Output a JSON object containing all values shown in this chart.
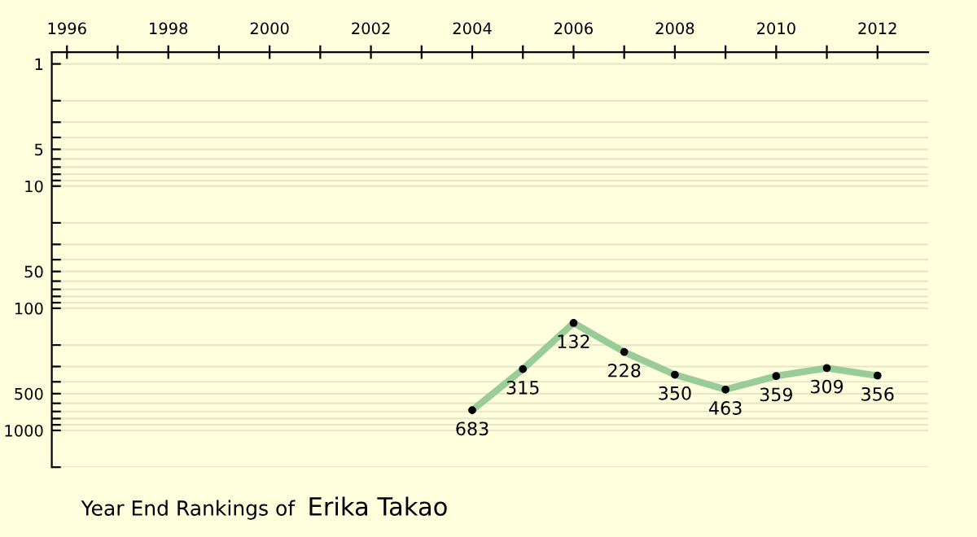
{
  "chart_data": {
    "type": "line",
    "x": [
      2004,
      2005,
      2006,
      2007,
      2008,
      2009,
      2010,
      2011,
      2012
    ],
    "series": [
      {
        "color": "#99cc99",
        "values": [
          683,
          315,
          132,
          228,
          350,
          463,
          359,
          309,
          356
        ]
      }
    ],
    "xlim": [
      1995.7,
      2013
    ],
    "xticks": [
      1996,
      {
        "value": 1997,
        "label": null
      },
      1998,
      {
        "value": 1999,
        "label": null
      },
      2000,
      {
        "value": 2001,
        "label": null
      },
      2002,
      {
        "value": 2003,
        "label": null
      },
      2004,
      {
        "value": 2005,
        "label": null
      },
      2006,
      {
        "value": 2007,
        "label": null
      },
      2008,
      {
        "value": 2009,
        "label": null
      },
      2010,
      {
        "value": 2011,
        "label": null
      },
      2012
    ],
    "ylim": [
      2000,
      0.8
    ],
    "yticks": [
      1,
      {
        "value": 2,
        "label": null
      },
      {
        "value": 3,
        "label": null
      },
      {
        "value": 4,
        "label": null
      },
      5,
      {
        "value": 6,
        "label": null
      },
      {
        "value": 7,
        "label": null
      },
      {
        "value": 8,
        "label": null
      },
      {
        "value": 9,
        "label": null
      },
      10,
      {
        "value": 20,
        "label": null
      },
      {
        "value": 30,
        "label": null
      },
      {
        "value": 40,
        "label": null
      },
      50,
      {
        "value": 60,
        "label": null
      },
      {
        "value": 70,
        "label": null
      },
      {
        "value": 80,
        "label": null
      },
      {
        "value": 90,
        "label": null
      },
      100,
      {
        "value": 200,
        "label": null
      },
      {
        "value": 300,
        "label": null
      },
      {
        "value": 400,
        "label": null
      },
      500,
      {
        "value": 600,
        "label": null
      },
      {
        "value": 700,
        "label": null
      },
      {
        "value": 800,
        "label": null
      },
      {
        "value": 900,
        "label": null
      },
      1000,
      {
        "value": 2000,
        "label": null
      }
    ],
    "log": "y",
    "grid": "y",
    "marker": "circle",
    "line_style": "solid",
    "data_labels": true,
    "annotations": [
      "Year End Rankings of",
      "Erika Takao"
    ]
  }
}
